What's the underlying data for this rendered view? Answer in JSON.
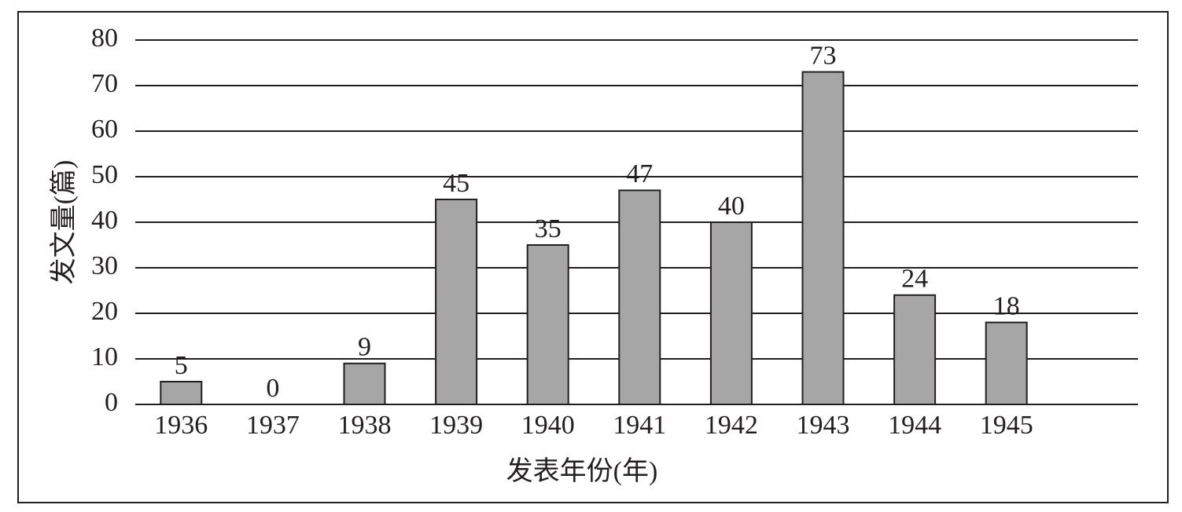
{
  "chart_data": {
    "type": "bar",
    "x_label": "发表年份(年)",
    "y_label": "发文量(篇)",
    "categories": [
      "1936",
      "1937",
      "1938",
      "1939",
      "1940",
      "1941",
      "1942",
      "1943",
      "1944",
      "1945"
    ],
    "values": [
      5,
      0,
      9,
      45,
      35,
      47,
      40,
      73,
      24,
      18
    ],
    "color": "#a6a6a6",
    "ylim": [
      0,
      80
    ],
    "yticks": [
      0,
      10,
      20,
      30,
      40,
      50,
      60,
      70,
      80
    ],
    "grid": true
  }
}
